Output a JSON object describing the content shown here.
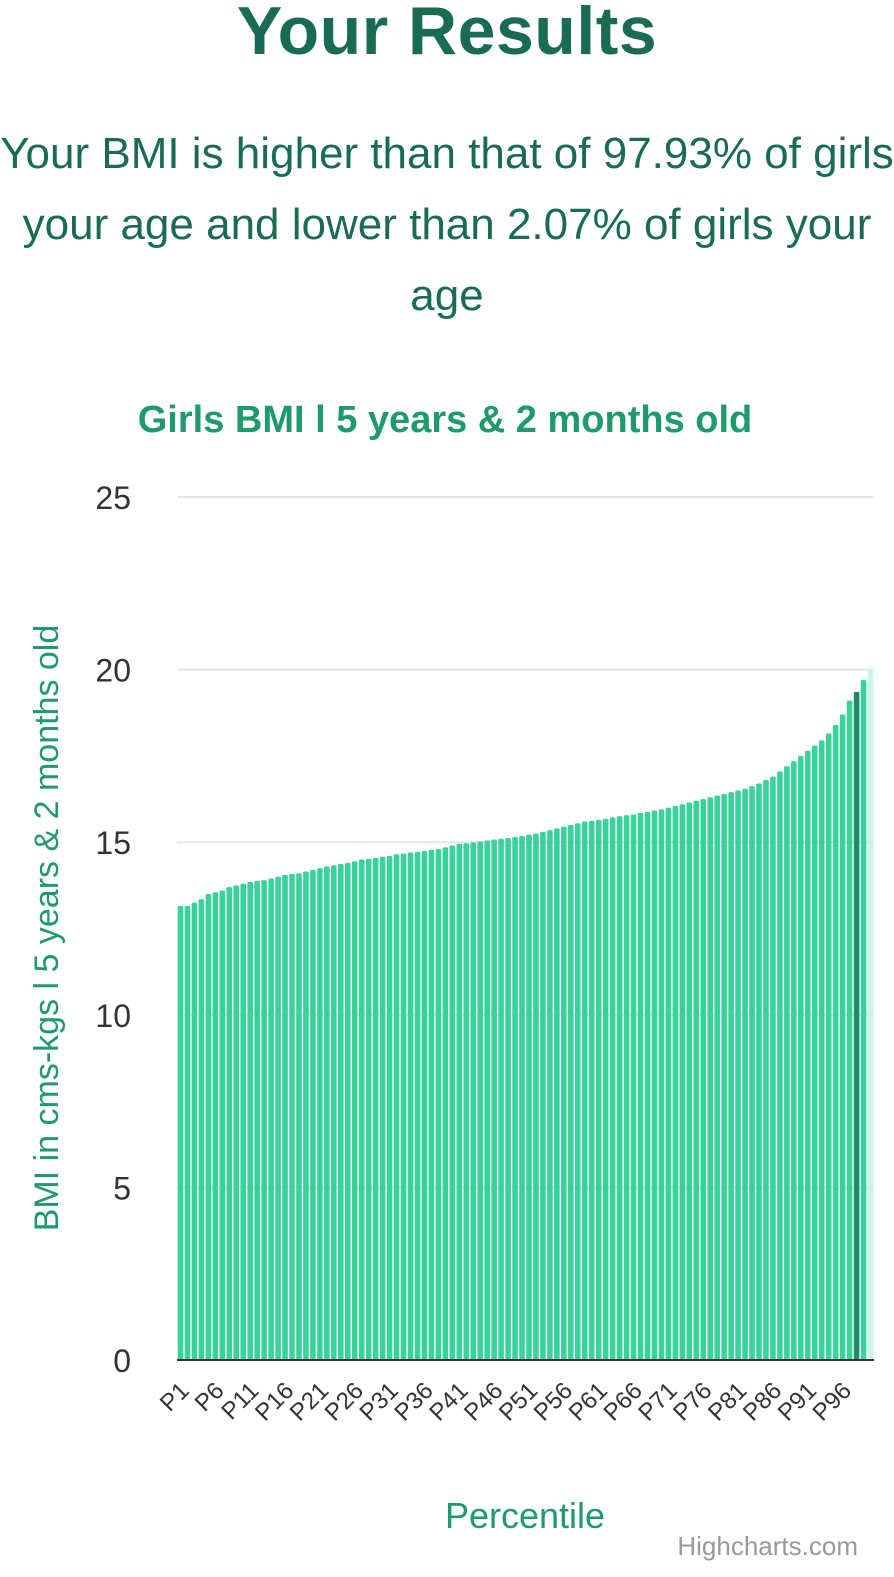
{
  "header": {
    "title": "Your Results",
    "summary": "Your BMI is higher than that of 97.93% of girls your age and lower than 2.07% of girls your age"
  },
  "credits": "Highcharts.com",
  "colors": {
    "title": "#1a6b55",
    "axis_text": "#1f9a6c",
    "bar": "#38d39a",
    "highlight_bar": "#1e8a66",
    "faded_bar": "#c9f5e3",
    "grid": "#e6e6e6",
    "baseline": "#333333"
  },
  "chart_data": {
    "type": "bar",
    "title": "Girls BMI l 5 years & 2 months old",
    "xlabel": "Percentile",
    "ylabel": "BMI in cms-kgs l 5 years & 2 months old",
    "ylim": [
      0,
      25
    ],
    "yticks": [
      0,
      5,
      10,
      15,
      20,
      25
    ],
    "grid": true,
    "legend": "none",
    "categories": [
      "P1",
      "P2",
      "P3",
      "P4",
      "P5",
      "P6",
      "P7",
      "P8",
      "P9",
      "P10",
      "P11",
      "P12",
      "P13",
      "P14",
      "P15",
      "P16",
      "P17",
      "P18",
      "P19",
      "P20",
      "P21",
      "P22",
      "P23",
      "P24",
      "P25",
      "P26",
      "P27",
      "P28",
      "P29",
      "P30",
      "P31",
      "P32",
      "P33",
      "P34",
      "P35",
      "P36",
      "P37",
      "P38",
      "P39",
      "P40",
      "P41",
      "P42",
      "P43",
      "P44",
      "P45",
      "P46",
      "P47",
      "P48",
      "P49",
      "P50",
      "P51",
      "P52",
      "P53",
      "P54",
      "P55",
      "P56",
      "P57",
      "P58",
      "P59",
      "P60",
      "P61",
      "P62",
      "P63",
      "P64",
      "P65",
      "P66",
      "P67",
      "P68",
      "P69",
      "P70",
      "P71",
      "P72",
      "P73",
      "P74",
      "P75",
      "P76",
      "P77",
      "P78",
      "P79",
      "P80",
      "P81",
      "P82",
      "P83",
      "P84",
      "P85",
      "P86",
      "P87",
      "P88",
      "P89",
      "P90",
      "P91",
      "P92",
      "P93",
      "P94",
      "P95",
      "P96",
      "P97",
      "P98",
      "P99"
    ],
    "shown_tick_labels": [
      "P1",
      "P6",
      "P11",
      "P16",
      "P21",
      "P26",
      "P31",
      "P36",
      "P41",
      "P46",
      "P51",
      "P56",
      "P61",
      "P66",
      "P71",
      "P76",
      "P81",
      "P86",
      "P91",
      "P96"
    ],
    "values": [
      13.15,
      13.15,
      13.25,
      13.35,
      13.5,
      13.55,
      13.6,
      13.7,
      13.75,
      13.8,
      13.85,
      13.88,
      13.9,
      13.95,
      14.0,
      14.05,
      14.08,
      14.1,
      14.15,
      14.2,
      14.25,
      14.3,
      14.33,
      14.37,
      14.4,
      14.45,
      14.5,
      14.52,
      14.55,
      14.58,
      14.6,
      14.65,
      14.67,
      14.7,
      14.72,
      14.75,
      14.78,
      14.8,
      14.85,
      14.9,
      14.95,
      14.97,
      15.0,
      15.02,
      15.05,
      15.08,
      15.1,
      15.12,
      15.15,
      15.18,
      15.22,
      15.25,
      15.3,
      15.35,
      15.4,
      15.45,
      15.5,
      15.55,
      15.6,
      15.62,
      15.65,
      15.68,
      15.72,
      15.75,
      15.78,
      15.8,
      15.85,
      15.88,
      15.92,
      15.95,
      16.0,
      16.05,
      16.1,
      16.15,
      16.2,
      16.25,
      16.3,
      16.35,
      16.4,
      16.45,
      16.5,
      16.55,
      16.62,
      16.7,
      16.8,
      16.9,
      17.05,
      17.2,
      17.35,
      17.5,
      17.65,
      17.8,
      17.95,
      18.15,
      18.4,
      18.7,
      19.1,
      19.35,
      19.7
    ],
    "highlight_category": "P98",
    "extra_faded_value": 20.0
  }
}
